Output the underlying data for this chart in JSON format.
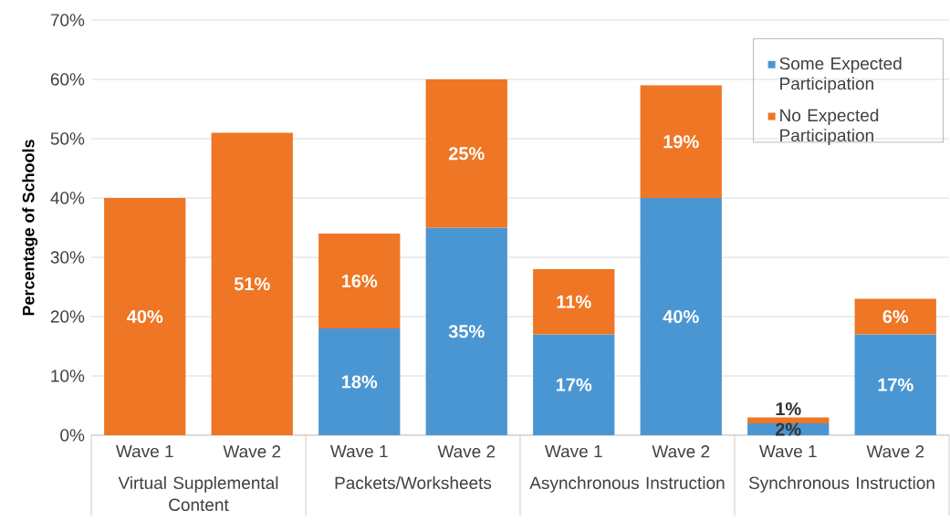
{
  "chart_data": {
    "type": "bar",
    "stacked": true,
    "ylabel": "Percentage of Schools",
    "categories": [
      "Wave 1",
      "Wave 2",
      "Wave 1",
      "Wave 2",
      "Wave 1",
      "Wave 2",
      "Wave 1",
      "Wave 2"
    ],
    "series": [
      {
        "name": "Some Expected Participation",
        "color": "#4a96d2",
        "values": [
          null,
          null,
          18,
          35,
          17,
          40,
          2,
          17
        ],
        "value_labels": [
          null,
          null,
          "18%",
          "35%",
          "17%",
          "40%",
          "2%",
          "17%"
        ]
      },
      {
        "name": "No Expected Participation",
        "color": "#ee7624",
        "values": [
          40,
          51,
          16,
          25,
          11,
          19,
          1,
          6
        ],
        "value_labels": [
          "40%",
          "51%",
          "16%",
          "25%",
          "11%",
          "19%",
          "1%",
          "6%"
        ]
      }
    ],
    "annotations": [
      "Virtual Supplemental Content",
      "Packets/Worksheets",
      "Asynchronous Instruction",
      "Synchronous Instruction"
    ],
    "ylim": [
      0,
      70
    ],
    "yticks": [
      {
        "value": 0,
        "label": "0%"
      },
      {
        "value": 10,
        "label": "10%"
      },
      {
        "value": 20,
        "label": "20%"
      },
      {
        "value": 30,
        "label": "30%"
      },
      {
        "value": 40,
        "label": "40%"
      },
      {
        "value": 50,
        "label": "50%"
      },
      {
        "value": 60,
        "label": "60%"
      },
      {
        "value": 70,
        "label": "70%"
      }
    ],
    "grid": "y",
    "legend": "top right"
  }
}
